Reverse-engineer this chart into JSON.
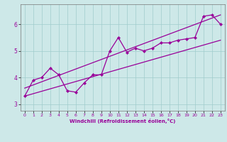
{
  "xlabel": "Windchill (Refroidissement éolien,°C)",
  "background_color": "#cde8e8",
  "grid_color": "#a0cccc",
  "line_color": "#990099",
  "xlim": [
    -0.5,
    23.5
  ],
  "ylim": [
    2.75,
    6.75
  ],
  "xticks": [
    0,
    1,
    2,
    3,
    4,
    5,
    6,
    7,
    8,
    9,
    10,
    11,
    12,
    13,
    14,
    15,
    16,
    17,
    18,
    19,
    20,
    21,
    22,
    23
  ],
  "yticks": [
    3,
    4,
    5,
    6
  ],
  "main_x": [
    0,
    1,
    2,
    3,
    4,
    5,
    6,
    7,
    8,
    9,
    10,
    11,
    12,
    13,
    14,
    15,
    16,
    17,
    18,
    19,
    20,
    21,
    22,
    23
  ],
  "main_y": [
    3.3,
    3.9,
    4.0,
    4.35,
    4.1,
    3.5,
    3.45,
    3.8,
    4.1,
    4.1,
    5.0,
    5.5,
    4.95,
    5.1,
    5.0,
    5.1,
    5.3,
    5.3,
    5.4,
    5.45,
    5.5,
    6.3,
    6.35,
    6.0
  ],
  "upper_line": [
    [
      0,
      3.6
    ],
    [
      23,
      6.35
    ]
  ],
  "lower_line": [
    [
      0,
      3.3
    ],
    [
      23,
      5.4
    ]
  ],
  "figsize": [
    3.2,
    2.0
  ],
  "dpi": 100
}
